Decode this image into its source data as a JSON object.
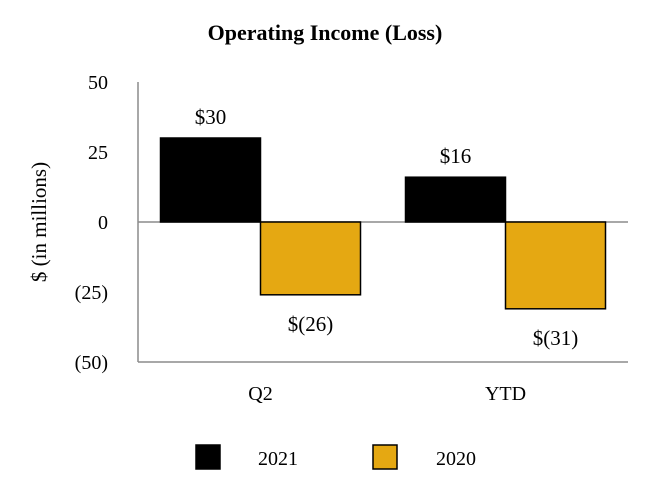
{
  "chart_data": {
    "type": "bar",
    "title": "Operating Income (Loss)",
    "ylabel": "$ (in millions)",
    "xlabel": "",
    "categories": [
      "Q2",
      "YTD"
    ],
    "series": [
      {
        "name": "2021",
        "values": [
          30,
          16
        ],
        "color": "#000000",
        "labels": [
          "$30",
          "$16"
        ]
      },
      {
        "name": "2020",
        "values": [
          -26,
          -31
        ],
        "color": "#E5A812",
        "labels": [
          "$(26)",
          "$(31)"
        ]
      }
    ],
    "ylim": [
      -50,
      50
    ],
    "yticks": [
      {
        "value": 50,
        "label": "50"
      },
      {
        "value": 25,
        "label": "25"
      },
      {
        "value": 0,
        "label": "0"
      },
      {
        "value": -25,
        "label": "(25)"
      },
      {
        "value": -50,
        "label": "(50)"
      }
    ],
    "grid": false,
    "legend": "bottom"
  }
}
